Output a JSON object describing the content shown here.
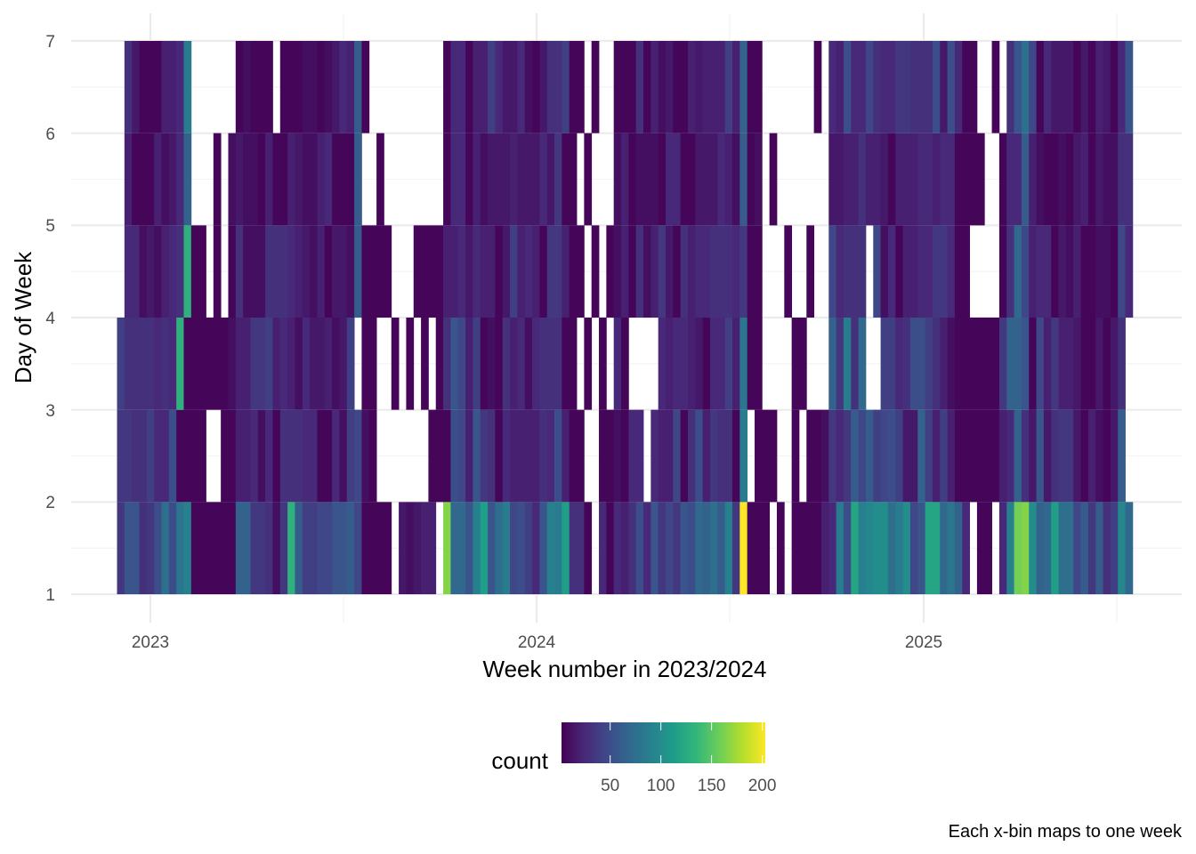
{
  "chart_data": {
    "type": "heatmap",
    "xlabel": "Week number in 2023/2024",
    "ylabel": "Day of Week",
    "x_ticks": [
      "2023",
      "2024",
      "2025"
    ],
    "y_ticks": [
      "1",
      "2",
      "3",
      "4",
      "5",
      "6",
      "7"
    ],
    "ylim": [
      1,
      7
    ],
    "grid": true,
    "caption": "Each x-bin maps to one week",
    "legend": {
      "title": "count",
      "ticks": [
        "50",
        "100",
        "150",
        "200"
      ],
      "range": [
        2,
        203
      ],
      "colormap": "viridis",
      "placement": "bottom"
    },
    "colors": [
      "#440154",
      "#482878",
      "#3e4989",
      "#31688e",
      "#26828e",
      "#1f9e89",
      "#35b779",
      "#6ece58",
      "#b5de2b",
      "#fde725"
    ],
    "y_bins": [
      [
        1,
        2
      ],
      [
        2,
        3
      ],
      [
        3,
        4
      ],
      [
        4,
        5
      ],
      [
        5,
        6
      ],
      [
        6,
        7
      ]
    ],
    "x": [
      "2022-12-04",
      "2022-12-11",
      "2022-12-18",
      "2022-12-25",
      "2023-01-01",
      "2023-01-08",
      "2023-01-15",
      "2023-01-22",
      "2023-01-29",
      "2023-02-05",
      "2023-02-12",
      "2023-02-19",
      "2023-02-26",
      "2023-03-05",
      "2023-03-12",
      "2023-03-19",
      "2023-03-26",
      "2023-04-02",
      "2023-04-09",
      "2023-04-16",
      "2023-04-23",
      "2023-04-30",
      "2023-05-07",
      "2023-05-14",
      "2023-05-21",
      "2023-05-28",
      "2023-06-04",
      "2023-06-11",
      "2023-06-18",
      "2023-06-25",
      "2023-07-02",
      "2023-07-09",
      "2023-07-16",
      "2023-07-23",
      "2023-07-30",
      "2023-08-06",
      "2023-08-13",
      "2023-08-20",
      "2023-08-27",
      "2023-09-03",
      "2023-09-10",
      "2023-09-17",
      "2023-09-24",
      "2023-10-01",
      "2023-10-08",
      "2023-10-15",
      "2023-10-22",
      "2023-10-29",
      "2023-11-05",
      "2023-11-12",
      "2023-11-19",
      "2023-11-26",
      "2023-12-03",
      "2023-12-10",
      "2023-12-17",
      "2023-12-24",
      "2023-12-31",
      "2024-01-07",
      "2024-01-14",
      "2024-01-21",
      "2024-01-28",
      "2024-02-04",
      "2024-02-11",
      "2024-02-18",
      "2024-02-25",
      "2024-03-03",
      "2024-03-10",
      "2024-03-17",
      "2024-03-24",
      "2024-03-31",
      "2024-04-07",
      "2024-04-14",
      "2024-04-21",
      "2024-04-28",
      "2024-05-05",
      "2024-05-12",
      "2024-05-19",
      "2024-05-26",
      "2024-06-02",
      "2024-06-09",
      "2024-06-16",
      "2024-06-23",
      "2024-06-30",
      "2024-07-07",
      "2024-07-14",
      "2024-07-21",
      "2024-07-28",
      "2024-08-04",
      "2024-08-11",
      "2024-08-18",
      "2024-08-25",
      "2024-09-01",
      "2024-09-08",
      "2024-09-15",
      "2024-09-22",
      "2024-09-29",
      "2024-10-06",
      "2024-10-13",
      "2024-10-20",
      "2024-10-27",
      "2024-11-03",
      "2024-11-10",
      "2024-11-17",
      "2024-11-24",
      "2024-12-01",
      "2024-12-08",
      "2024-12-15",
      "2024-12-22",
      "2024-12-29",
      "2025-01-05",
      "2025-01-12",
      "2025-01-19",
      "2025-01-26",
      "2025-02-02",
      "2025-02-09",
      "2025-02-16",
      "2025-02-23",
      "2025-03-02",
      "2025-03-09",
      "2025-03-16",
      "2025-03-23",
      "2025-03-30",
      "2025-04-06",
      "2025-04-13",
      "2025-04-20",
      "2025-04-27",
      "2025-05-04",
      "2025-05-11",
      "2025-05-18",
      "2025-05-25",
      "2025-06-01",
      "2025-06-08",
      "2025-06-15",
      "2025-06-22",
      "2025-06-29",
      "2025-07-06",
      "2025-07-13"
    ],
    "values": [
      [
        35,
        55,
        55,
        30,
        35,
        50,
        75,
        50,
        80,
        90,
        5,
        5,
        5,
        5,
        5,
        5,
        65,
        65,
        35,
        35,
        30,
        10,
        35,
        130,
        60,
        40,
        40,
        45,
        45,
        55,
        55,
        60,
        45,
        5,
        5,
        5,
        5,
        null,
        15,
        10,
        15,
        20,
        20,
        null,
        165,
        70,
        70,
        55,
        90,
        115,
        55,
        75,
        85,
        45,
        50,
        40,
        25,
        55,
        90,
        85,
        115,
        30,
        30,
        5,
        null,
        25,
        5,
        25,
        20,
        30,
        50,
        25,
        55,
        35,
        45,
        35,
        55,
        50,
        70,
        65,
        75,
        60,
        90,
        35,
        203,
        5,
        5,
        5,
        null,
        5,
        null,
        5,
        5,
        5,
        5,
        20,
        25,
        85,
        50,
        120,
        90,
        95,
        100,
        100,
        75,
        85,
        100,
        45,
        55,
        120,
        120,
        70,
        80,
        65,
        25,
        null,
        5,
        5,
        null,
        25,
        90,
        160,
        165,
        100,
        65,
        70,
        115,
        75,
        75,
        45,
        60,
        35,
        60,
        30,
        40,
        95,
        70
      ],
      [
        35,
        35,
        30,
        30,
        40,
        25,
        25,
        50,
        5,
        5,
        5,
        5,
        null,
        null,
        5,
        5,
        20,
        20,
        25,
        10,
        25,
        5,
        30,
        30,
        30,
        25,
        25,
        5,
        5,
        25,
        10,
        40,
        45,
        10,
        5,
        null,
        null,
        null,
        null,
        null,
        null,
        null,
        5,
        5,
        5,
        50,
        45,
        20,
        55,
        35,
        30,
        5,
        25,
        20,
        20,
        20,
        20,
        30,
        25,
        50,
        20,
        5,
        5,
        null,
        null,
        5,
        5,
        10,
        5,
        25,
        25,
        null,
        25,
        20,
        20,
        45,
        5,
        30,
        50,
        20,
        35,
        30,
        30,
        5,
        85,
        null,
        5,
        5,
        5,
        null,
        null,
        5,
        null,
        5,
        5,
        10,
        35,
        25,
        35,
        60,
        45,
        60,
        40,
        45,
        50,
        40,
        15,
        15,
        65,
        40,
        20,
        40,
        20,
        5,
        5,
        5,
        5,
        5,
        5,
        20,
        25,
        65,
        30,
        15,
        55,
        15,
        30,
        35,
        35,
        15,
        5,
        20,
        10,
        5,
        15,
        60,
        null
      ],
      [
        40,
        30,
        30,
        30,
        30,
        25,
        30,
        25,
        130,
        5,
        5,
        5,
        5,
        5,
        5,
        10,
        20,
        20,
        35,
        35,
        40,
        20,
        25,
        20,
        10,
        25,
        15,
        15,
        20,
        10,
        15,
        40,
        null,
        5,
        5,
        null,
        null,
        5,
        null,
        5,
        null,
        5,
        null,
        5,
        30,
        55,
        45,
        20,
        40,
        5,
        10,
        5,
        30,
        20,
        25,
        10,
        25,
        30,
        30,
        30,
        5,
        5,
        null,
        5,
        null,
        5,
        null,
        25,
        5,
        null,
        null,
        null,
        null,
        25,
        20,
        25,
        25,
        20,
        15,
        5,
        25,
        25,
        40,
        20,
        80,
        5,
        5,
        null,
        null,
        null,
        null,
        5,
        5,
        null,
        null,
        null,
        65,
        35,
        85,
        30,
        70,
        null,
        null,
        40,
        40,
        25,
        30,
        50,
        50,
        40,
        30,
        20,
        10,
        5,
        5,
        5,
        5,
        5,
        5,
        35,
        65,
        65,
        55,
        5,
        45,
        20,
        35,
        20,
        20,
        15,
        5,
        5,
        15,
        5,
        15,
        30,
        null
      ],
      [
        null,
        25,
        25,
        10,
        15,
        10,
        20,
        25,
        30,
        130,
        5,
        5,
        null,
        5,
        null,
        5,
        30,
        10,
        10,
        10,
        30,
        30,
        30,
        25,
        20,
        15,
        10,
        20,
        5,
        15,
        15,
        10,
        60,
        5,
        5,
        5,
        5,
        null,
        null,
        null,
        5,
        5,
        5,
        5,
        20,
        20,
        25,
        15,
        25,
        20,
        20,
        5,
        15,
        40,
        20,
        25,
        20,
        5,
        35,
        35,
        20,
        5,
        5,
        null,
        5,
        null,
        5,
        10,
        20,
        5,
        30,
        10,
        20,
        35,
        15,
        5,
        30,
        20,
        25,
        25,
        30,
        30,
        30,
        25,
        35,
        5,
        5,
        null,
        null,
        null,
        5,
        null,
        null,
        5,
        null,
        null,
        45,
        25,
        30,
        30,
        30,
        null,
        45,
        10,
        25,
        5,
        20,
        20,
        25,
        25,
        35,
        35,
        25,
        5,
        5,
        null,
        null,
        null,
        null,
        5,
        30,
        70,
        45,
        20,
        25,
        25,
        5,
        15,
        10,
        20,
        5,
        5,
        10,
        10,
        5,
        45,
        25
      ],
      [
        null,
        20,
        5,
        5,
        5,
        20,
        10,
        15,
        25,
        65,
        null,
        null,
        null,
        5,
        null,
        10,
        15,
        10,
        10,
        5,
        20,
        5,
        5,
        20,
        15,
        10,
        10,
        20,
        25,
        5,
        5,
        5,
        60,
        null,
        null,
        5,
        null,
        null,
        null,
        null,
        null,
        null,
        null,
        null,
        5,
        25,
        25,
        5,
        20,
        10,
        15,
        15,
        15,
        20,
        15,
        15,
        15,
        25,
        15,
        35,
        5,
        5,
        null,
        5,
        null,
        null,
        null,
        10,
        20,
        5,
        10,
        10,
        10,
        5,
        25,
        25,
        5,
        5,
        15,
        15,
        15,
        25,
        20,
        10,
        60,
        5,
        10,
        null,
        5,
        null,
        null,
        null,
        null,
        null,
        null,
        null,
        15,
        15,
        20,
        20,
        30,
        20,
        20,
        15,
        5,
        20,
        20,
        20,
        25,
        25,
        20,
        25,
        25,
        5,
        5,
        5,
        5,
        null,
        null,
        5,
        25,
        25,
        60,
        20,
        10,
        5,
        5,
        10,
        5,
        15,
        20,
        5,
        15,
        10,
        10,
        30,
        30
      ],
      [
        null,
        30,
        15,
        5,
        5,
        5,
        20,
        20,
        25,
        85,
        null,
        null,
        null,
        null,
        null,
        null,
        5,
        10,
        5,
        5,
        5,
        null,
        5,
        5,
        5,
        10,
        10,
        5,
        10,
        15,
        25,
        20,
        60,
        5,
        null,
        null,
        null,
        null,
        null,
        null,
        null,
        null,
        null,
        null,
        5,
        25,
        25,
        5,
        20,
        20,
        40,
        25,
        15,
        15,
        25,
        10,
        5,
        15,
        30,
        30,
        40,
        5,
        5,
        null,
        5,
        null,
        null,
        5,
        5,
        5,
        30,
        5,
        20,
        10,
        15,
        5,
        5,
        20,
        15,
        20,
        20,
        20,
        40,
        20,
        65,
        5,
        5,
        null,
        null,
        null,
        null,
        null,
        null,
        null,
        5,
        null,
        25,
        20,
        50,
        25,
        25,
        45,
        30,
        25,
        25,
        35,
        35,
        30,
        30,
        30,
        50,
        15,
        50,
        25,
        5,
        5,
        null,
        null,
        5,
        null,
        30,
        55,
        75,
        45,
        5,
        25,
        15,
        15,
        15,
        5,
        15,
        5,
        20,
        15,
        5,
        25,
        55
      ]
    ]
  }
}
